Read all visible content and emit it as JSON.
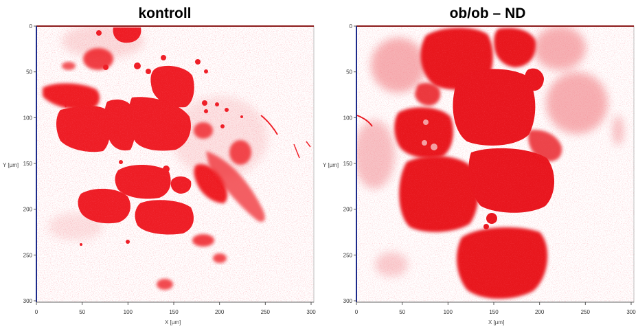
{
  "panels": [
    {
      "title": "kontroll",
      "xlabel": "X [µm]",
      "ylabel": "Y [µm]",
      "xticks": [
        "0",
        "50",
        "100",
        "150",
        "200",
        "250",
        "300"
      ],
      "yticks": [
        "0",
        "50",
        "100",
        "150",
        "200",
        "250",
        "300"
      ],
      "xlim": [
        0,
        300
      ],
      "ylim": [
        0,
        300
      ],
      "image_description_colors": {
        "stain": "#ee1c24",
        "x_axis": "#8b1a1a",
        "y_axis": "#1c2a8b"
      }
    },
    {
      "title": "ob/ob – ND",
      "xlabel": "X [µm]",
      "ylabel": "Y [µm]",
      "xticks": [
        "0",
        "50",
        "100",
        "150",
        "200",
        "250",
        "300"
      ],
      "yticks": [
        "0",
        "50",
        "100",
        "150",
        "200",
        "250",
        "300"
      ],
      "xlim": [
        0,
        300
      ],
      "ylim": [
        0,
        300
      ],
      "image_description_colors": {
        "stain": "#e8151d",
        "x_axis": "#8b1a1a",
        "y_axis": "#1c2a8b"
      }
    }
  ]
}
